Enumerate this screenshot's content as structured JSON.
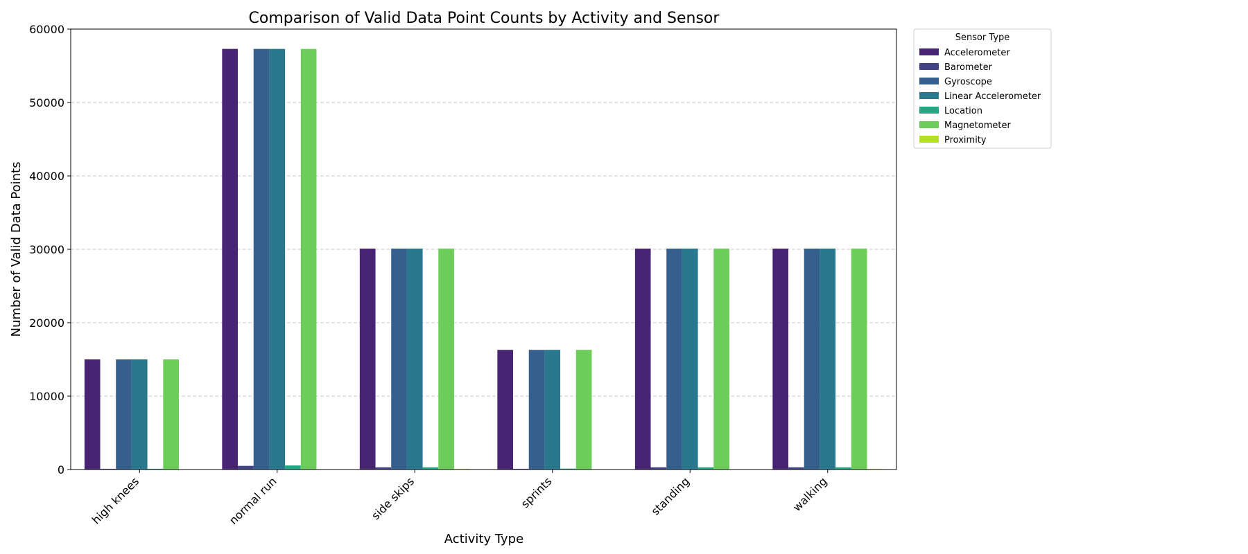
{
  "chart_data": {
    "type": "bar",
    "title": "Comparison of Valid Data Point Counts by Activity and Sensor",
    "xlabel": "Activity Type",
    "ylabel": "Number of Valid Data Points",
    "categories": [
      "high knees",
      "normal run",
      "side skips",
      "sprints",
      "standing",
      "walking"
    ],
    "ylim": [
      0,
      60000
    ],
    "yticks": [
      0,
      10000,
      20000,
      30000,
      40000,
      50000,
      60000
    ],
    "grid": "y-dashed",
    "legend": {
      "title": "Sensor Type",
      "placement": "outside-top-right"
    },
    "series": [
      {
        "name": "Accelerometer",
        "color": "#482475",
        "values": [
          15000,
          57300,
          30100,
          16300,
          30100,
          30100
        ]
      },
      {
        "name": "Barometer",
        "color": "#414487",
        "values": [
          100,
          500,
          300,
          100,
          300,
          300
        ]
      },
      {
        "name": "Gyroscope",
        "color": "#355f8d",
        "values": [
          15000,
          57300,
          30100,
          16300,
          30100,
          30100
        ]
      },
      {
        "name": "Linear Accelerometer",
        "color": "#2a788e",
        "values": [
          15000,
          57300,
          30100,
          16300,
          30100,
          30100
        ]
      },
      {
        "name": "Location",
        "color": "#22a884",
        "values": [
          100,
          550,
          300,
          120,
          300,
          300
        ]
      },
      {
        "name": "Magnetometer",
        "color": "#6ccd5a",
        "values": [
          15000,
          57300,
          30100,
          16300,
          30100,
          30100
        ]
      },
      {
        "name": "Proximity",
        "color": "#b4de2c",
        "values": [
          0,
          0,
          80,
          0,
          0,
          80
        ]
      }
    ]
  }
}
